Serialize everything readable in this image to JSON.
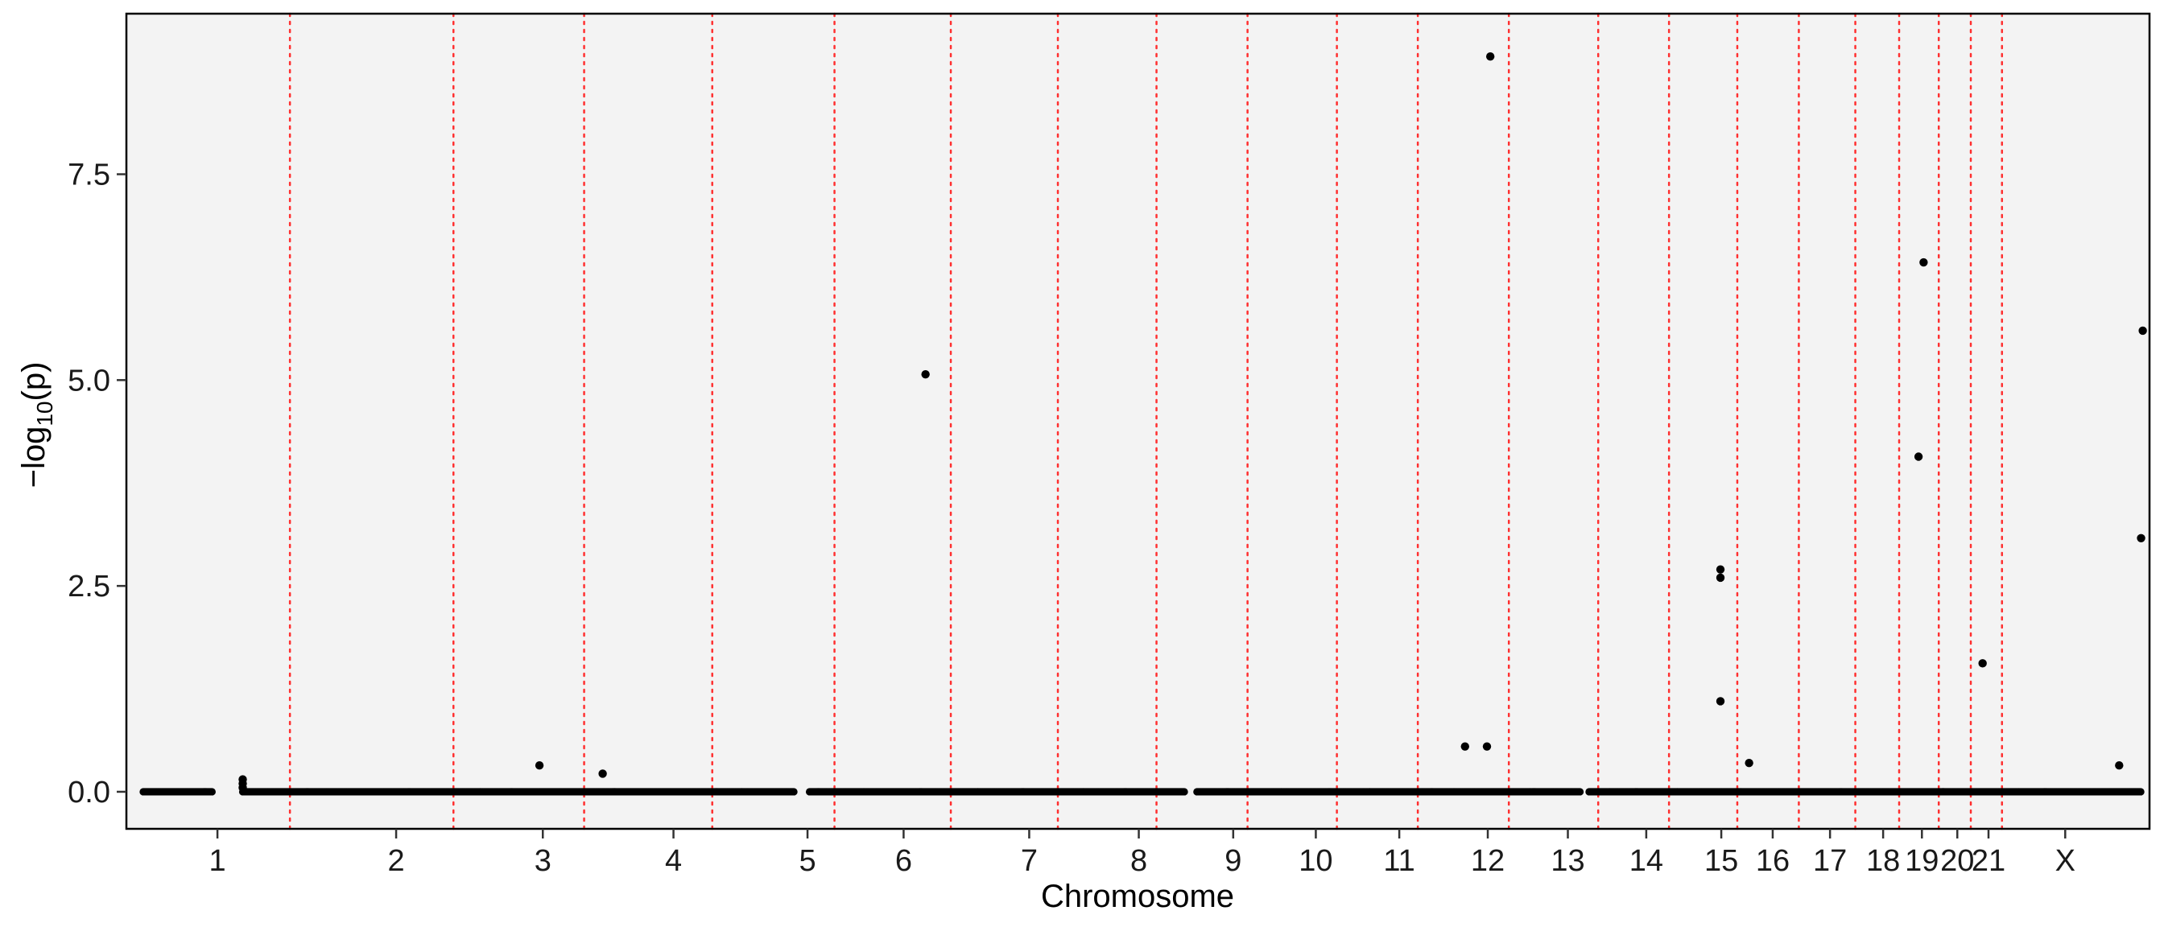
{
  "chart_data": {
    "type": "scatter",
    "title": "",
    "xlabel": "Chromosome",
    "ylabel_prefix": "−log",
    "ylabel_sub": "10",
    "ylabel_suffix": "(p)",
    "ylim": [
      -0.45,
      9.45
    ],
    "yticks": [
      0.0,
      2.5,
      5.0,
      7.5
    ],
    "ytick_labels": [
      "0.0",
      "2.5",
      "5.0",
      "7.5"
    ],
    "xlim": [
      0.0,
      24.0
    ],
    "grid": false,
    "legend": "none",
    "background_color": "#f3f3f3",
    "point_color": "#000000",
    "separator_color": "#ff3030",
    "chromosomes": [
      {
        "label": "1",
        "start": 0.2,
        "end": 1.2,
        "gap_end": 1.38,
        "tick": 1.08
      },
      {
        "label": "2",
        "start": 1.38,
        "end": 4.2,
        "tick": 3.2
      },
      {
        "label": "3",
        "start": 4.2,
        "end": 5.8,
        "tick": 4.94
      },
      {
        "label": "4",
        "start": 5.8,
        "end": 7.3,
        "tick": 6.49
      },
      {
        "label": "5",
        "start": 7.3,
        "end": 8.75,
        "gap_start": 7.92,
        "gap_end": 8.1,
        "tick": 8.08
      },
      {
        "label": "6",
        "start": 8.75,
        "end": 10.1,
        "tick": 9.22
      },
      {
        "label": "7",
        "start": 10.1,
        "end": 11.35,
        "tick": 10.71
      },
      {
        "label": "8",
        "start": 11.35,
        "end": 12.55,
        "tick": 12.01
      },
      {
        "label": "9",
        "start": 12.7,
        "end": 13.7,
        "gap_start": 12.55,
        "gap_end": 12.7,
        "tick": 13.13
      },
      {
        "label": "10",
        "start": 13.7,
        "end": 14.75,
        "tick": 14.11
      },
      {
        "label": "11",
        "start": 14.75,
        "end": 15.75,
        "tick": 15.1
      },
      {
        "label": "12",
        "start": 15.75,
        "end": 16.65,
        "tick": 16.15
      },
      {
        "label": "13",
        "start": 16.65,
        "end": 17.6,
        "gap_start": 17.25,
        "gap_end": 17.35,
        "tick": 17.1
      },
      {
        "label": "14",
        "start": 17.6,
        "end": 18.4,
        "tick": 18.03
      },
      {
        "label": "15",
        "start": 18.4,
        "end": 19.15,
        "tick": 18.92
      },
      {
        "label": "16",
        "start": 19.15,
        "end": 19.85,
        "tick": 19.53
      },
      {
        "label": "17",
        "start": 19.85,
        "end": 20.55,
        "tick": 20.21
      },
      {
        "label": "18",
        "start": 20.55,
        "end": 21.05,
        "tick": 20.84
      },
      {
        "label": "19",
        "start": 21.05,
        "end": 21.55,
        "tick": 21.3
      },
      {
        "label": "20",
        "start": 21.55,
        "end": 21.9,
        "tick": 21.72
      },
      {
        "label": "21",
        "start": 21.9,
        "end": 22.45,
        "tick": 22.09
      },
      {
        "label": "X",
        "start": 22.45,
        "end": 23.9,
        "tick": 23.0
      }
    ],
    "separators": [
      1.94,
      3.88,
      5.43,
      6.95,
      8.4,
      9.78,
      11.05,
      12.22,
      13.3,
      14.36,
      15.32,
      16.4,
      17.46,
      18.3,
      19.11,
      19.84,
      20.51,
      21.03,
      21.5,
      21.88,
      22.25
    ],
    "notable_points": [
      {
        "x": 1.38,
        "y": 0.15
      },
      {
        "x": 1.38,
        "y": 0.1
      },
      {
        "x": 1.38,
        "y": 0.05
      },
      {
        "x": 4.9,
        "y": 0.32
      },
      {
        "x": 5.65,
        "y": 0.22
      },
      {
        "x": 9.48,
        "y": 5.07
      },
      {
        "x": 15.88,
        "y": 0.55
      },
      {
        "x": 16.14,
        "y": 0.55
      },
      {
        "x": 16.18,
        "y": 8.93
      },
      {
        "x": 18.91,
        "y": 2.7
      },
      {
        "x": 18.91,
        "y": 2.6
      },
      {
        "x": 18.91,
        "y": 1.1
      },
      {
        "x": 19.25,
        "y": 0.35
      },
      {
        "x": 21.26,
        "y": 4.07
      },
      {
        "x": 21.32,
        "y": 6.43
      },
      {
        "x": 22.02,
        "y": 1.56
      },
      {
        "x": 23.64,
        "y": 0.32
      },
      {
        "x": 23.9,
        "y": 3.08
      },
      {
        "x": 23.92,
        "y": 5.6
      }
    ]
  }
}
